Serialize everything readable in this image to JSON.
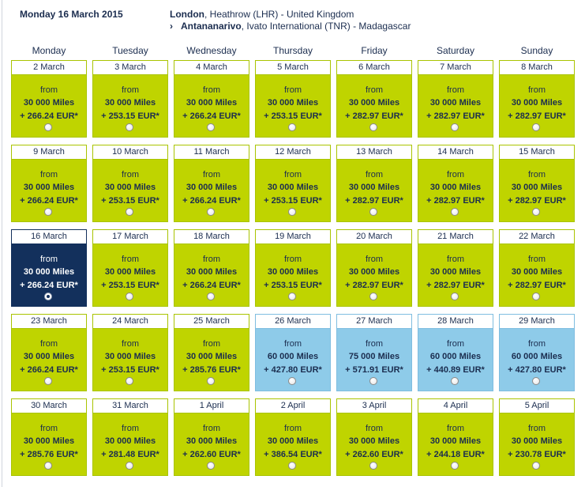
{
  "header": {
    "date": "Monday 16 March 2015",
    "origin": {
      "city": "London",
      "rest": ", Heathrow (LHR) - United Kingdom"
    },
    "destination": {
      "chevron": "›",
      "city": "Antananarivo",
      "rest": ", Ivato International (TNR) - Madagascar"
    }
  },
  "weekdays": [
    "Monday",
    "Tuesday",
    "Wednesday",
    "Thursday",
    "Friday",
    "Saturday",
    "Sunday"
  ],
  "from_label": "from",
  "weeks": [
    [
      {
        "date": "2 March",
        "miles": "30 000 Miles",
        "price": "+ 266.24 EUR*",
        "color": "green"
      },
      {
        "date": "3 March",
        "miles": "30 000 Miles",
        "price": "+ 253.15 EUR*",
        "color": "green"
      },
      {
        "date": "4 March",
        "miles": "30 000 Miles",
        "price": "+ 266.24 EUR*",
        "color": "green"
      },
      {
        "date": "5 March",
        "miles": "30 000 Miles",
        "price": "+ 253.15 EUR*",
        "color": "green"
      },
      {
        "date": "6 March",
        "miles": "30 000 Miles",
        "price": "+ 282.97 EUR*",
        "color": "green"
      },
      {
        "date": "7 March",
        "miles": "30 000 Miles",
        "price": "+ 282.97 EUR*",
        "color": "green"
      },
      {
        "date": "8 March",
        "miles": "30 000 Miles",
        "price": "+ 282.97 EUR*",
        "color": "green"
      }
    ],
    [
      {
        "date": "9 March",
        "miles": "30 000 Miles",
        "price": "+ 266.24 EUR*",
        "color": "green"
      },
      {
        "date": "10 March",
        "miles": "30 000 Miles",
        "price": "+ 253.15 EUR*",
        "color": "green"
      },
      {
        "date": "11 March",
        "miles": "30 000 Miles",
        "price": "+ 266.24 EUR*",
        "color": "green"
      },
      {
        "date": "12 March",
        "miles": "30 000 Miles",
        "price": "+ 253.15 EUR*",
        "color": "green"
      },
      {
        "date": "13 March",
        "miles": "30 000 Miles",
        "price": "+ 282.97 EUR*",
        "color": "green"
      },
      {
        "date": "14 March",
        "miles": "30 000 Miles",
        "price": "+ 282.97 EUR*",
        "color": "green"
      },
      {
        "date": "15 March",
        "miles": "30 000 Miles",
        "price": "+ 282.97 EUR*",
        "color": "green"
      }
    ],
    [
      {
        "date": "16 March",
        "miles": "30 000 Miles",
        "price": "+ 266.24 EUR*",
        "color": "selected",
        "selected": true
      },
      {
        "date": "17 March",
        "miles": "30 000 Miles",
        "price": "+ 253.15 EUR*",
        "color": "green"
      },
      {
        "date": "18 March",
        "miles": "30 000 Miles",
        "price": "+ 266.24 EUR*",
        "color": "green"
      },
      {
        "date": "19 March",
        "miles": "30 000 Miles",
        "price": "+ 253.15 EUR*",
        "color": "green"
      },
      {
        "date": "20 March",
        "miles": "30 000 Miles",
        "price": "+ 282.97 EUR*",
        "color": "green"
      },
      {
        "date": "21 March",
        "miles": "30 000 Miles",
        "price": "+ 282.97 EUR*",
        "color": "green"
      },
      {
        "date": "22 March",
        "miles": "30 000 Miles",
        "price": "+ 282.97 EUR*",
        "color": "green"
      }
    ],
    [
      {
        "date": "23 March",
        "miles": "30 000 Miles",
        "price": "+ 266.24 EUR*",
        "color": "green"
      },
      {
        "date": "24 March",
        "miles": "30 000 Miles",
        "price": "+ 253.15 EUR*",
        "color": "green"
      },
      {
        "date": "25 March",
        "miles": "30 000 Miles",
        "price": "+ 285.76 EUR*",
        "color": "green"
      },
      {
        "date": "26 March",
        "miles": "60 000 Miles",
        "price": "+ 427.80 EUR*",
        "color": "blue"
      },
      {
        "date": "27 March",
        "miles": "75 000 Miles",
        "price": "+ 571.91 EUR*",
        "color": "blue"
      },
      {
        "date": "28 March",
        "miles": "60 000 Miles",
        "price": "+ 440.89 EUR*",
        "color": "blue"
      },
      {
        "date": "29 March",
        "miles": "60 000 Miles",
        "price": "+ 427.80 EUR*",
        "color": "blue"
      }
    ],
    [
      {
        "date": "30 March",
        "miles": "30 000 Miles",
        "price": "+ 285.76 EUR*",
        "color": "green"
      },
      {
        "date": "31 March",
        "miles": "30 000 Miles",
        "price": "+ 281.48 EUR*",
        "color": "green"
      },
      {
        "date": "1 April",
        "miles": "30 000 Miles",
        "price": "+ 262.60 EUR*",
        "color": "green"
      },
      {
        "date": "2 April",
        "miles": "30 000 Miles",
        "price": "+ 386.54 EUR*",
        "color": "green"
      },
      {
        "date": "3 April",
        "miles": "30 000 Miles",
        "price": "+ 262.60 EUR*",
        "color": "green"
      },
      {
        "date": "4 April",
        "miles": "30 000 Miles",
        "price": "+ 244.18 EUR*",
        "color": "green"
      },
      {
        "date": "5 April",
        "miles": "30 000 Miles",
        "price": "+ 230.78 EUR*",
        "color": "green"
      }
    ]
  ],
  "colors": {
    "green": "#bfd400",
    "blue": "#8ecbe9",
    "selected": "#13305c",
    "text": "#1b2d4f"
  }
}
